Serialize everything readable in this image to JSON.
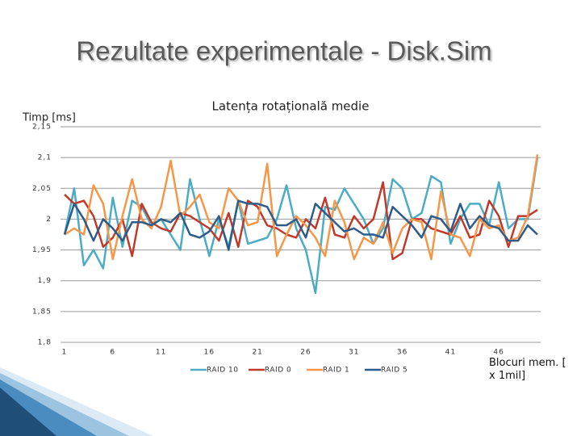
{
  "slide": {
    "title": "Rezultate experimentale - Disk.Sim"
  },
  "chart_data": {
    "type": "line",
    "title": "Latența rotațională medie",
    "y_label": "Timp [ms]",
    "x_label": "Blocuri mem. [ x 1mil]",
    "x": [
      1,
      2,
      3,
      4,
      5,
      6,
      7,
      8,
      9,
      10,
      11,
      12,
      13,
      14,
      15,
      16,
      17,
      18,
      19,
      20,
      21,
      22,
      23,
      24,
      25,
      26,
      27,
      28,
      29,
      30,
      31,
      32,
      33,
      34,
      35,
      36,
      37,
      38,
      39,
      40,
      41,
      42,
      43,
      44,
      45,
      46,
      47,
      48,
      49,
      50
    ],
    "xlim": [
      1,
      50
    ],
    "xticks": [
      1,
      6,
      11,
      16,
      21,
      26,
      31,
      36,
      41,
      46
    ],
    "ylim": [
      1.8,
      2.15
    ],
    "yticks": [
      {
        "value": 1.8,
        "label": "1,8"
      },
      {
        "value": 1.85,
        "label": "1,85"
      },
      {
        "value": 1.9,
        "label": "1,9"
      },
      {
        "value": 1.95,
        "label": "1,95"
      },
      2,
      {
        "value": 2.05,
        "label": "2,05"
      },
      {
        "value": 2.1,
        "label": "2,1"
      },
      {
        "value": 2.15,
        "label": "2,15"
      }
    ],
    "grid": true,
    "legend": "bottom",
    "series": [
      {
        "name": "RAID 10",
        "color": "#4bacc6",
        "values": [
          1.975,
          2.05,
          1.925,
          1.95,
          1.92,
          2.035,
          1.955,
          2.03,
          2.02,
          1.99,
          2.0,
          1.975,
          1.95,
          2.065,
          2.0,
          1.94,
          2.0,
          1.955,
          2.03,
          1.96,
          1.965,
          1.97,
          2.0,
          2.055,
          1.985,
          1.95,
          1.88,
          2.02,
          2.015,
          2.05,
          2.025,
          2.0,
          1.96,
          1.985,
          2.065,
          2.05,
          2.0,
          2.01,
          2.07,
          2.06,
          1.96,
          2.0,
          2.025,
          2.025,
          1.99,
          2.06,
          1.985,
          2.0,
          2.0,
          2.1
        ]
      },
      {
        "name": "RAID 0",
        "color": "#c0392b",
        "values": [
          2.04,
          2.025,
          2.03,
          2.005,
          1.955,
          1.97,
          2.0,
          1.94,
          2.025,
          1.995,
          1.985,
          1.98,
          2.01,
          2.005,
          1.995,
          1.985,
          1.965,
          2.01,
          1.955,
          2.03,
          2.02,
          1.99,
          1.985,
          1.975,
          1.97,
          2.0,
          1.985,
          2.035,
          1.975,
          1.97,
          2.005,
          1.985,
          2.0,
          2.06,
          1.935,
          1.945,
          2.0,
          2.0,
          1.985,
          1.98,
          1.975,
          2.005,
          1.97,
          1.975,
          2.03,
          2.005,
          1.955,
          2.005,
          2.005,
          2.015
        ]
      },
      {
        "name": "RAID 1",
        "color": "#f79646",
        "values": [
          1.975,
          1.985,
          1.975,
          2.055,
          2.025,
          1.935,
          2.005,
          2.065,
          2.0,
          1.985,
          2.02,
          2.095,
          2.005,
          2.02,
          2.04,
          1.995,
          1.985,
          2.05,
          2.03,
          1.99,
          1.995,
          2.09,
          1.94,
          1.975,
          2.005,
          1.99,
          1.97,
          1.94,
          2.03,
          1.995,
          1.935,
          1.97,
          1.96,
          1.995,
          1.945,
          1.985,
          2.0,
          1.995,
          1.935,
          2.045,
          1.975,
          1.97,
          1.94,
          2.0,
          1.985,
          1.99,
          1.965,
          1.97,
          2.005,
          2.105
        ]
      },
      {
        "name": "RAID 5",
        "color": "#2e5c8a",
        "values": [
          1.975,
          2.025,
          2.0,
          1.965,
          2.0,
          1.985,
          1.965,
          1.995,
          1.995,
          1.99,
          2.0,
          1.995,
          2.01,
          1.975,
          1.97,
          1.98,
          2.005,
          1.95,
          2.03,
          2.025,
          2.025,
          2.02,
          1.99,
          1.99,
          2.0,
          1.97,
          2.025,
          2.01,
          1.995,
          1.98,
          1.985,
          1.975,
          1.975,
          1.97,
          2.02,
          2.005,
          1.99,
          1.97,
          2.005,
          2.0,
          1.98,
          2.025,
          1.985,
          2.005,
          1.99,
          1.985,
          1.965,
          1.965,
          1.99,
          1.975
        ]
      }
    ]
  }
}
